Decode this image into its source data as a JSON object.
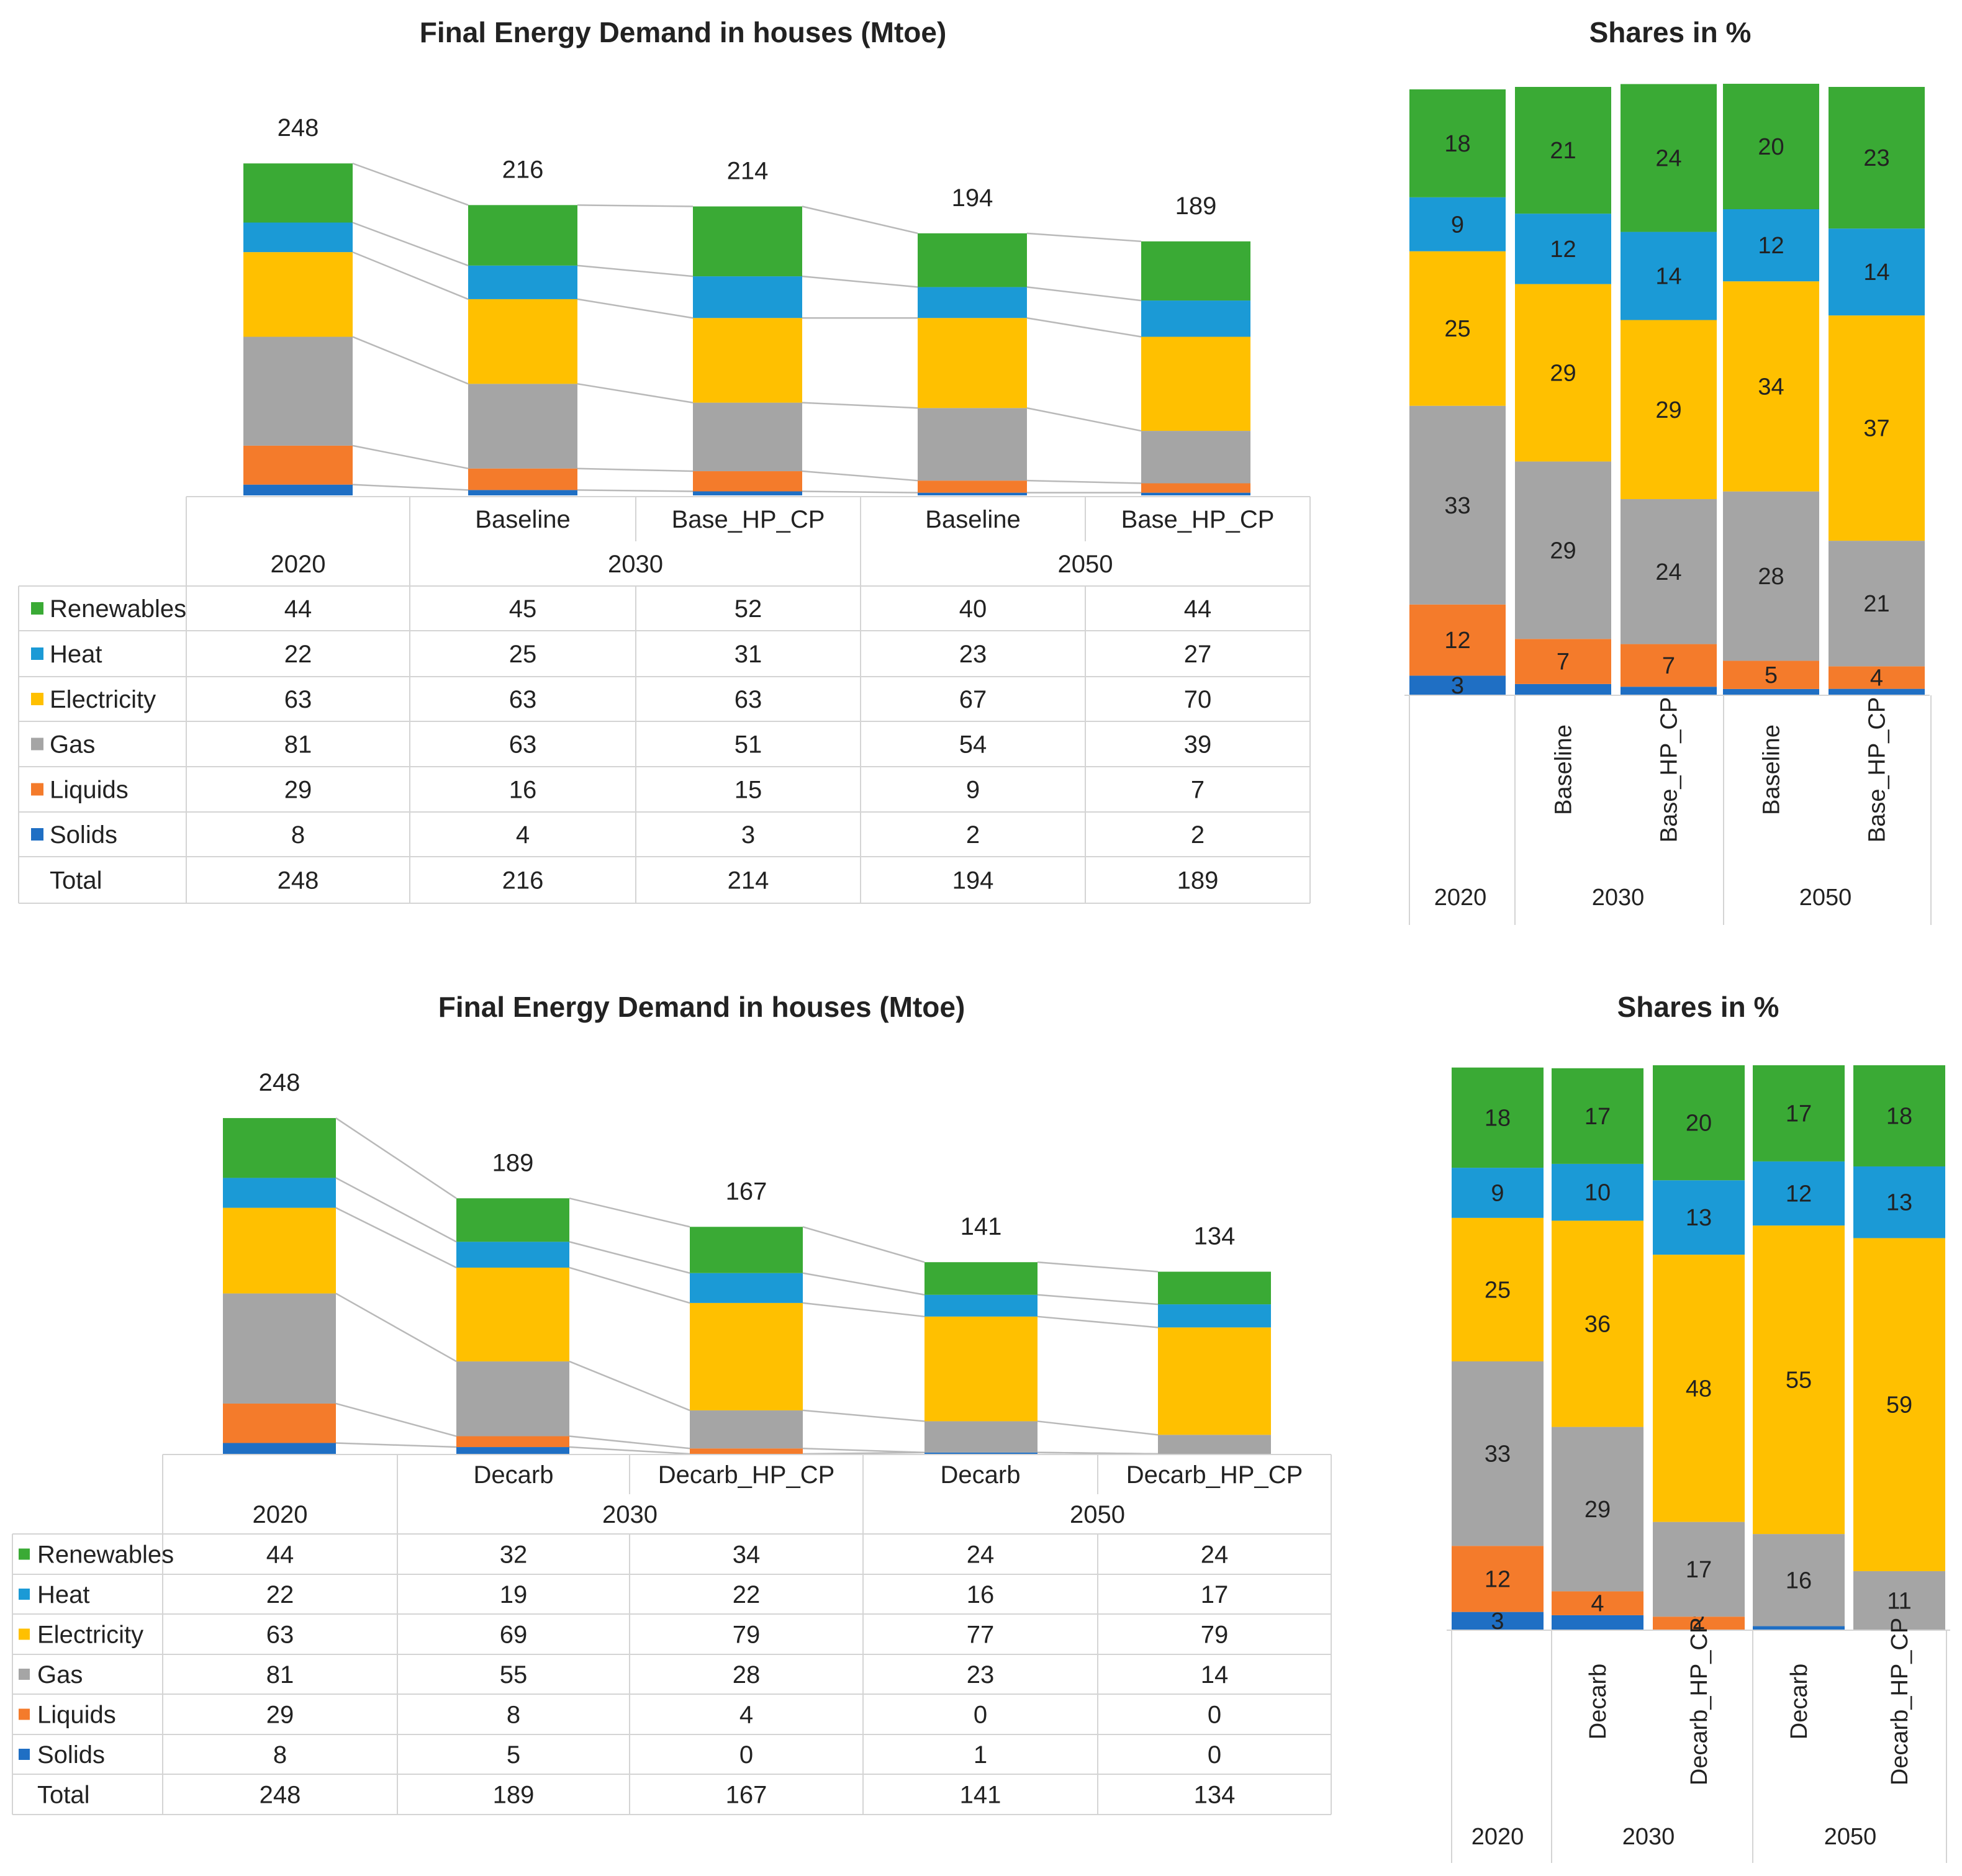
{
  "chart_data": [
    {
      "type": "bar",
      "stacked": true,
      "title": "Final Energy Demand in houses (Mtoe)",
      "shares_title": "Shares in %",
      "years": [
        "2020",
        "2030",
        "2050"
      ],
      "scenarios": [
        "",
        "Baseline",
        "Base_HP_CP",
        "Baseline",
        "Base_HP_CP"
      ],
      "year_groups": [
        [
          0
        ],
        [
          1,
          2
        ],
        [
          3,
          4
        ]
      ],
      "categories": [
        "2020",
        "2030 Baseline",
        "2030 Base_HP_CP",
        "2050 Baseline",
        "2050 Base_HP_CP"
      ],
      "series": [
        {
          "name": "Renewables",
          "color": "#3aaa35",
          "values": [
            44,
            45,
            52,
            40,
            44
          ]
        },
        {
          "name": "Heat",
          "color": "#1b9ad6",
          "values": [
            22,
            25,
            31,
            23,
            27
          ]
        },
        {
          "name": "Electricity",
          "color": "#ffc000",
          "values": [
            63,
            63,
            63,
            67,
            70
          ]
        },
        {
          "name": "Gas",
          "color": "#a5a5a5",
          "values": [
            81,
            63,
            51,
            54,
            39
          ]
        },
        {
          "name": "Liquids",
          "color": "#f47b2b",
          "values": [
            29,
            16,
            15,
            9,
            7
          ]
        },
        {
          "name": "Solids",
          "color": "#1f6fc4",
          "values": [
            8,
            4,
            3,
            2,
            2
          ]
        }
      ],
      "total_label": "Total",
      "totals": [
        248,
        216,
        214,
        194,
        189
      ],
      "shares": {
        "Renewables": [
          18,
          21,
          24,
          20,
          23
        ],
        "Heat": [
          9,
          12,
          14,
          12,
          14
        ],
        "Electricity": [
          25,
          29,
          29,
          34,
          37
        ],
        "Gas": [
          33,
          29,
          24,
          28,
          21
        ],
        "Liquids": [
          12,
          7,
          7,
          5,
          4
        ],
        "Solids": [
          3,
          null,
          null,
          null,
          null
        ]
      },
      "ylim": [
        0,
        260
      ],
      "share_ylim": [
        0,
        100
      ]
    },
    {
      "type": "bar",
      "stacked": true,
      "title": "Final Energy Demand in houses (Mtoe)",
      "shares_title": "Shares in %",
      "years": [
        "2020",
        "2030",
        "2050"
      ],
      "scenarios": [
        "",
        "Decarb",
        "Decarb_HP_CP",
        "Decarb",
        "Decarb_HP_CP"
      ],
      "year_groups": [
        [
          0
        ],
        [
          1,
          2
        ],
        [
          3,
          4
        ]
      ],
      "categories": [
        "2020",
        "2030 Decarb",
        "2030 Decarb_HP_CP",
        "2050 Decarb",
        "2050 Decarb_HP_CP"
      ],
      "series": [
        {
          "name": "Renewables",
          "color": "#3aaa35",
          "values": [
            44,
            32,
            34,
            24,
            24
          ]
        },
        {
          "name": "Heat",
          "color": "#1b9ad6",
          "values": [
            22,
            19,
            22,
            16,
            17
          ]
        },
        {
          "name": "Electricity",
          "color": "#ffc000",
          "values": [
            63,
            69,
            79,
            77,
            79
          ]
        },
        {
          "name": "Gas",
          "color": "#a5a5a5",
          "values": [
            81,
            55,
            28,
            23,
            14
          ]
        },
        {
          "name": "Liquids",
          "color": "#f47b2b",
          "values": [
            29,
            8,
            4,
            0,
            0
          ]
        },
        {
          "name": "Solids",
          "color": "#1f6fc4",
          "values": [
            8,
            5,
            0,
            1,
            0
          ]
        }
      ],
      "total_label": "Total",
      "totals": [
        248,
        189,
        167,
        141,
        134
      ],
      "shares": {
        "Renewables": [
          18,
          17,
          20,
          17,
          18
        ],
        "Heat": [
          9,
          10,
          13,
          12,
          13
        ],
        "Electricity": [
          25,
          36,
          48,
          55,
          59
        ],
        "Gas": [
          33,
          29,
          17,
          16,
          11
        ],
        "Liquids": [
          12,
          4,
          2,
          0,
          0
        ],
        "Solids": [
          3,
          null,
          null,
          null,
          null
        ]
      },
      "ylim": [
        0,
        260
      ],
      "share_ylim": [
        0,
        100
      ]
    }
  ]
}
